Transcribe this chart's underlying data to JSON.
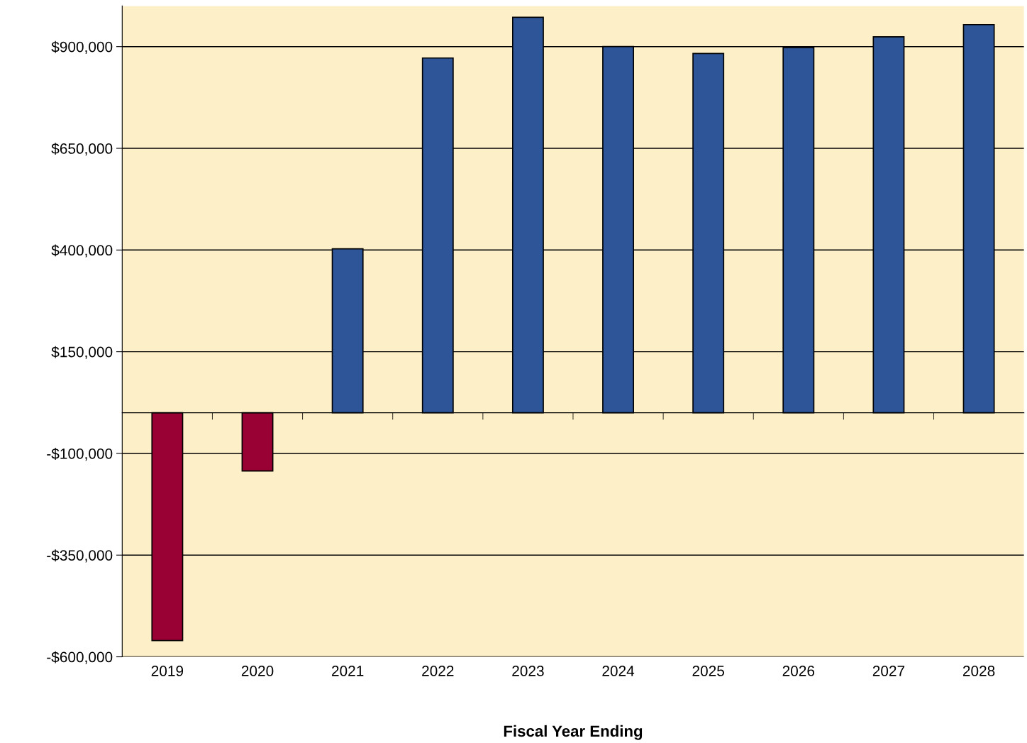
{
  "chart_data": {
    "type": "bar",
    "xlabel": "Fiscal Year Ending",
    "categories": [
      "2019",
      "2020",
      "2021",
      "2022",
      "2023",
      "2024",
      "2025",
      "2026",
      "2027",
      "2028"
    ],
    "values": [
      -560000,
      -143000,
      403000,
      872000,
      972000,
      900000,
      883000,
      898000,
      924000,
      954000
    ],
    "colors": [
      "#990033",
      "#990033",
      "#2e5597",
      "#2e5597",
      "#2e5597",
      "#2e5597",
      "#2e5597",
      "#2e5597",
      "#2e5597",
      "#2e5597"
    ],
    "ylim": [
      -600000,
      1000000
    ],
    "yticks": [
      {
        "value": -600000,
        "label": "-$600,000"
      },
      {
        "value": -350000,
        "label": "-$350,000"
      },
      {
        "value": -100000,
        "label": "-$100,000"
      },
      {
        "value": 150000,
        "label": "$150,000"
      },
      {
        "value": 400000,
        "label": "$400,000"
      },
      {
        "value": 650000,
        "label": "$650,000"
      },
      {
        "value": 900000,
        "label": "$900,000"
      }
    ],
    "grid": "y",
    "legend": false
  }
}
